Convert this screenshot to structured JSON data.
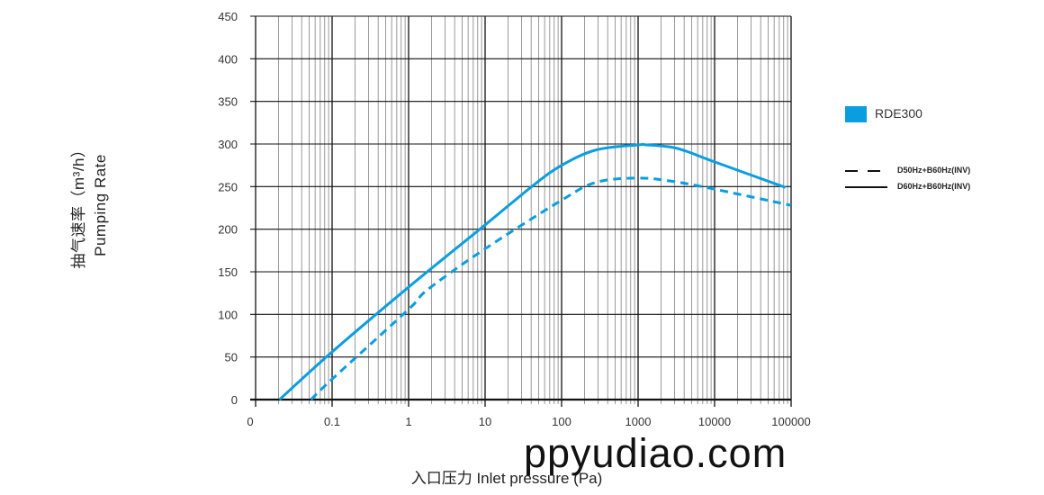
{
  "chart_data": {
    "type": "line",
    "title": "",
    "xlabel": "入口压力 Inlet pressure (Pa)",
    "ylabel_lines": [
      "抽气速率（m³/h）",
      "Pumping Rate"
    ],
    "x_scale": "log",
    "xlim": [
      0.01,
      100000
    ],
    "ylim": [
      0,
      450
    ],
    "x_tick_labels": [
      "0",
      "0.1",
      "1",
      "10",
      "100",
      "1000",
      "10000",
      "100000"
    ],
    "x_tick_values": [
      0.01,
      0.1,
      1,
      10,
      100,
      1000,
      10000,
      100000
    ],
    "y_ticks": [
      0,
      50,
      100,
      150,
      200,
      250,
      300,
      350,
      400,
      450
    ],
    "grid": true,
    "legend_placement": "right",
    "color": "#0a9ee0",
    "model_legend": "RDE300",
    "series": [
      {
        "name": "D60Hz+B60Hz(INV)",
        "style": "solid",
        "x": [
          0.0205,
          0.1,
          1,
          10,
          42,
          100,
          282,
          1000,
          1300,
          3200,
          10000,
          84500
        ],
        "y": [
          0,
          56,
          132,
          205,
          251,
          275,
          293,
          299,
          299,
          295,
          279,
          249
        ]
      },
      {
        "name": "D50Hz+B60Hz(INV)",
        "style": "dashed",
        "x": [
          0.053,
          0.1,
          1,
          1.77,
          10,
          100,
          282,
          1000,
          2900,
          10000,
          100000
        ],
        "y": [
          0,
          24,
          106,
          129,
          177,
          234,
          255,
          260,
          256,
          247,
          228
        ]
      }
    ]
  },
  "watermark": "ppyudiao.com"
}
